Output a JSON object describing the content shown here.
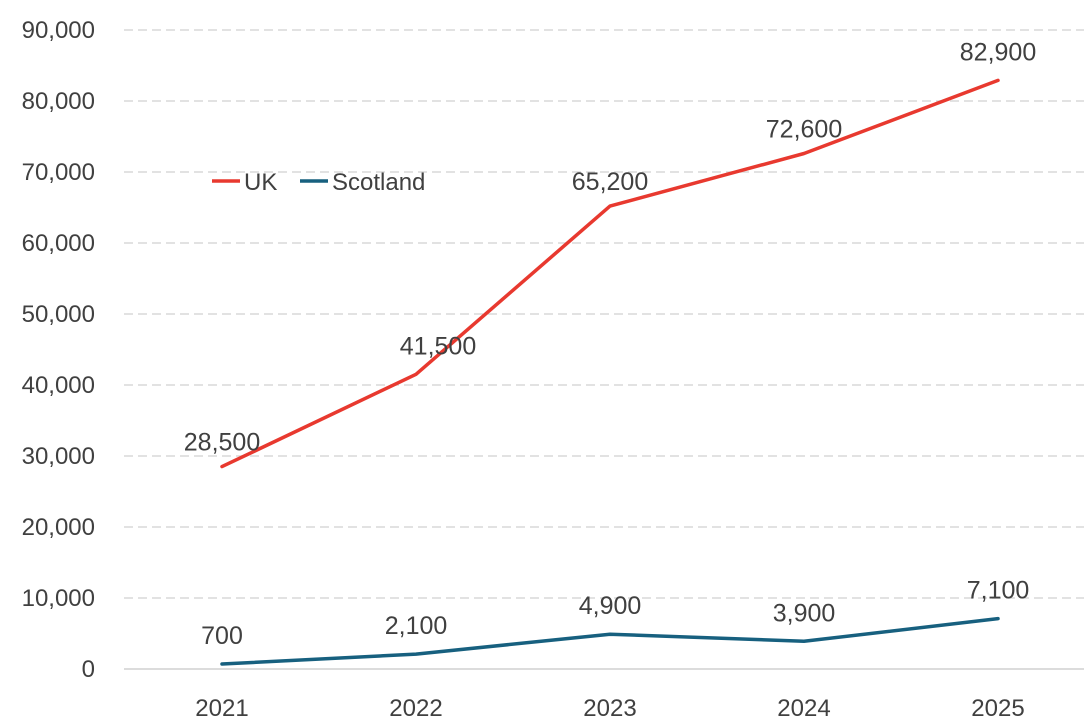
{
  "chart_data": {
    "type": "line",
    "categories": [
      "2021",
      "2022",
      "2023",
      "2024",
      "2025"
    ],
    "series": [
      {
        "name": "UK",
        "color": "#e8392f",
        "values": [
          28500,
          41500,
          65200,
          72600,
          82900
        ],
        "labels": [
          "28,500",
          "41,500",
          "65,200",
          "72,600",
          "82,900"
        ]
      },
      {
        "name": "Scotland",
        "color": "#17607f",
        "values": [
          700,
          2100,
          4900,
          3900,
          7100
        ],
        "labels": [
          "700",
          "2,100",
          "4,900",
          "3,900",
          "7,100"
        ]
      }
    ],
    "yticks": [
      "0",
      "10,000",
      "20,000",
      "30,000",
      "40,000",
      "50,000",
      "60,000",
      "70,000",
      "80,000",
      "90,000"
    ],
    "ylim": [
      0,
      90000
    ],
    "grid": true,
    "legend": "upper-left"
  }
}
